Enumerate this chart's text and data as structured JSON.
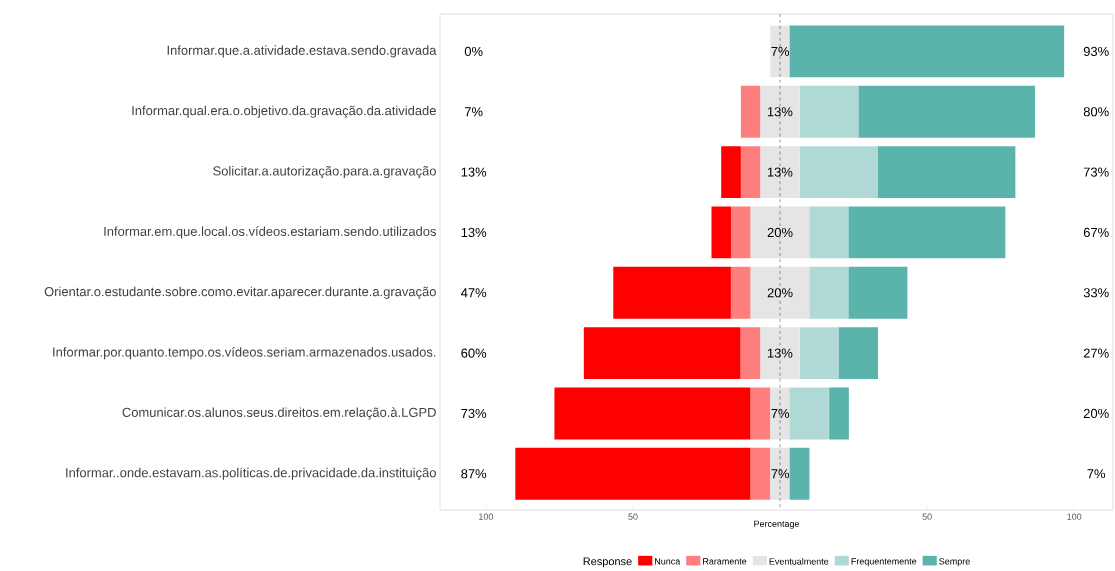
{
  "chart_data": {
    "type": "bar",
    "orientation": "horizontal",
    "xlabel": "Percentage",
    "legend_title": "Response",
    "legend": "bottom",
    "categories": [
      "Informar.que.a.atividade.estava.sendo.gravada",
      "Informar.qual.era.o.objetivo.da.gravação.da.atividade",
      "Solicitar.a.autorização.para.a.gravação",
      "Informar.em.que.local.os.vídeos.estariam.sendo.utilizados",
      "Orientar.o.estudante.sobre.como.evitar.aparecer.durante.a.gravação",
      "Informar.por.quanto.tempo.os.vídeos.seriam.armazenados.usados.",
      "Comunicar.os.alunos.seus.direitos.em.relação.à.LGPD",
      "Informar..onde.estavam.as.políticas.de.privacidade.da.instituição"
    ],
    "xlim": [
      -115.6,
      113.2
    ],
    "xticks": [
      {
        "value": -100,
        "label": "100"
      },
      {
        "value": -50,
        "label": "50"
      },
      50,
      100
    ],
    "ref_lines": [
      {
        "axis": "x",
        "value": 0,
        "line_style": "dashed",
        "color": "#000000"
      }
    ],
    "annotations": [
      "0%",
      "7%",
      "13%",
      "13%",
      "47%",
      "60%",
      "73%",
      "87%",
      "93%",
      "80%",
      "73%",
      "67%",
      "33%",
      "27%",
      "20%",
      "7%"
    ],
    "series": [
      {
        "name": "Nunca",
        "color": "#ff0000",
        "base": [
          null,
          null,
          -20,
          -23.3,
          -56.7,
          -66.7,
          -76.7,
          -90
        ],
        "values": [
          0,
          0,
          6.7,
          6.7,
          40,
          53.3,
          66.7,
          80
        ]
      },
      {
        "name": "Raramente",
        "color": "#ff7f7f",
        "base": [
          null,
          -13.3,
          -13.3,
          -16.7,
          -16.7,
          -13.3,
          -10,
          -10
        ],
        "values": [
          0,
          6.7,
          6.7,
          6.7,
          6.7,
          6.7,
          6.7,
          6.7
        ]
      },
      {
        "name": "Eventualmente",
        "color": "#e5e5e5",
        "base": [
          -3.3,
          -6.7,
          -6.7,
          -10,
          -10,
          -6.7,
          -3.3,
          -3.3
        ],
        "values": [
          6.7,
          13.3,
          13.3,
          20,
          20,
          13.3,
          6.7,
          6.7
        ],
        "value_labels": [
          "7%",
          "13%",
          "13%",
          "20%",
          "20%",
          "13%",
          "7%",
          "7%"
        ]
      },
      {
        "name": "Frequentemente",
        "color": "#b0d9d5",
        "base": [
          null,
          6.7,
          6.7,
          10,
          10,
          6.7,
          3.3,
          null
        ],
        "values": [
          0,
          20,
          26.7,
          13.3,
          13.3,
          13.3,
          13.3,
          0
        ]
      },
      {
        "name": "Sempre",
        "color": "#5ab4ac",
        "base": [
          3.3,
          26.7,
          33.3,
          23.3,
          23.3,
          20,
          16.7,
          3.3
        ],
        "values": [
          93.3,
          60,
          46.7,
          53.3,
          20,
          13.3,
          6.7,
          6.7
        ]
      }
    ]
  }
}
